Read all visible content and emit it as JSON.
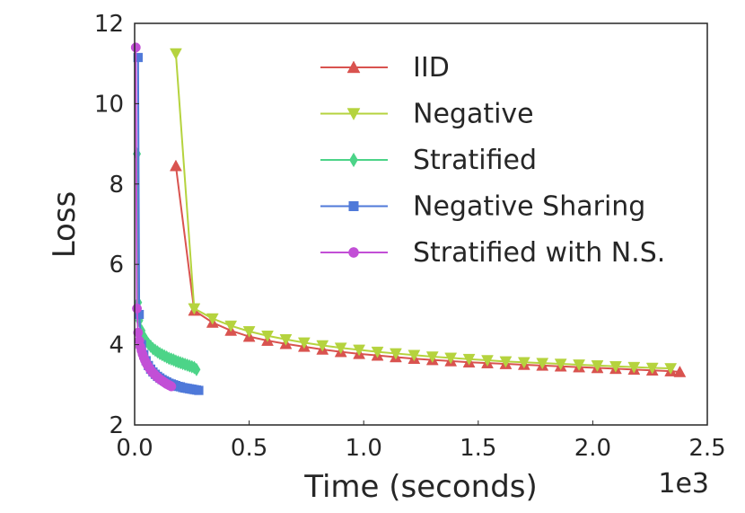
{
  "chart_data": {
    "type": "line",
    "title": "",
    "xlabel": "Time (seconds)",
    "ylabel": "Loss",
    "x_offset_label": "1e3",
    "xlim": [
      0,
      2.5
    ],
    "ylim": [
      2,
      12
    ],
    "x_ticks": [
      0.0,
      0.5,
      1.0,
      1.5,
      2.0,
      2.5
    ],
    "x_tick_labels": [
      "0.0",
      "0.5",
      "1.0",
      "1.5",
      "2.0",
      "2.5"
    ],
    "y_ticks": [
      2,
      4,
      6,
      8,
      10,
      12
    ],
    "y_tick_labels": [
      "2",
      "4",
      "6",
      "8",
      "10",
      "12"
    ],
    "grid": false,
    "legend_position": "upper-right",
    "series": [
      {
        "name": "IID",
        "color": "#d9534f",
        "marker": "triangle-up",
        "x": [
          0.18,
          0.26,
          0.34,
          0.42,
          0.5,
          0.58,
          0.66,
          0.74,
          0.82,
          0.9,
          0.98,
          1.06,
          1.14,
          1.22,
          1.3,
          1.38,
          1.46,
          1.54,
          1.62,
          1.7,
          1.78,
          1.86,
          1.94,
          2.02,
          2.1,
          2.18,
          2.26,
          2.34,
          2.38
        ],
        "y": [
          8.45,
          4.85,
          4.55,
          4.35,
          4.2,
          4.1,
          4.02,
          3.95,
          3.88,
          3.82,
          3.77,
          3.73,
          3.69,
          3.65,
          3.62,
          3.59,
          3.56,
          3.54,
          3.52,
          3.5,
          3.48,
          3.46,
          3.44,
          3.42,
          3.4,
          3.38,
          3.36,
          3.34,
          3.32
        ]
      },
      {
        "name": "Negative",
        "color": "#b5d33e",
        "marker": "triangle-down",
        "x": [
          0.18,
          0.26,
          0.34,
          0.42,
          0.5,
          0.58,
          0.66,
          0.74,
          0.82,
          0.9,
          0.98,
          1.06,
          1.14,
          1.22,
          1.3,
          1.38,
          1.46,
          1.54,
          1.62,
          1.7,
          1.78,
          1.86,
          1.94,
          2.02,
          2.1,
          2.18,
          2.26,
          2.34
        ],
        "y": [
          11.25,
          4.9,
          4.65,
          4.47,
          4.33,
          4.22,
          4.13,
          4.05,
          3.98,
          3.92,
          3.87,
          3.82,
          3.78,
          3.74,
          3.7,
          3.67,
          3.64,
          3.61,
          3.58,
          3.56,
          3.54,
          3.52,
          3.5,
          3.48,
          3.46,
          3.44,
          3.42,
          3.41
        ]
      },
      {
        "name": "Stratified",
        "color": "#4cd488",
        "marker": "diamond",
        "x": [
          0.01,
          0.015,
          0.02,
          0.03,
          0.04,
          0.05,
          0.06,
          0.07,
          0.08,
          0.09,
          0.1,
          0.11,
          0.12,
          0.13,
          0.14,
          0.15,
          0.16,
          0.17,
          0.18,
          0.19,
          0.2,
          0.21,
          0.22,
          0.23,
          0.24,
          0.25,
          0.26,
          0.27
        ],
        "y": [
          8.75,
          5.05,
          4.6,
          4.35,
          4.2,
          4.1,
          4.02,
          3.96,
          3.9,
          3.86,
          3.82,
          3.78,
          3.75,
          3.72,
          3.69,
          3.66,
          3.64,
          3.62,
          3.59,
          3.57,
          3.55,
          3.53,
          3.51,
          3.49,
          3.47,
          3.45,
          3.43,
          3.38
        ]
      },
      {
        "name": "Negative Sharing",
        "color": "#4f79d9",
        "marker": "square",
        "x": [
          0.015,
          0.02,
          0.03,
          0.04,
          0.05,
          0.06,
          0.07,
          0.08,
          0.09,
          0.1,
          0.11,
          0.12,
          0.13,
          0.14,
          0.15,
          0.16,
          0.17,
          0.18,
          0.19,
          0.2,
          0.21,
          0.22,
          0.23,
          0.24,
          0.25,
          0.26,
          0.27,
          0.28
        ],
        "y": [
          11.15,
          4.75,
          4.0,
          3.75,
          3.6,
          3.48,
          3.39,
          3.32,
          3.26,
          3.21,
          3.17,
          3.13,
          3.1,
          3.07,
          3.04,
          3.02,
          3.0,
          2.98,
          2.96,
          2.95,
          2.93,
          2.92,
          2.91,
          2.9,
          2.89,
          2.88,
          2.87,
          2.86
        ]
      },
      {
        "name": "Stratified with N.S.",
        "color": "#c24fd6",
        "marker": "circle",
        "x": [
          0.005,
          0.01,
          0.015,
          0.02,
          0.025,
          0.03,
          0.035,
          0.04,
          0.045,
          0.05,
          0.055,
          0.06,
          0.065,
          0.07,
          0.075,
          0.08,
          0.085,
          0.09,
          0.095,
          0.1,
          0.105,
          0.11,
          0.115,
          0.12,
          0.125,
          0.13,
          0.135,
          0.14,
          0.145,
          0.15,
          0.155,
          0.16
        ],
        "y": [
          11.4,
          4.9,
          4.3,
          4.1,
          3.95,
          3.85,
          3.76,
          3.68,
          3.61,
          3.55,
          3.5,
          3.45,
          3.41,
          3.37,
          3.33,
          3.3,
          3.27,
          3.24,
          3.21,
          3.19,
          3.16,
          3.14,
          3.12,
          3.1,
          3.08,
          3.06,
          3.04,
          3.02,
          3.01,
          2.99,
          2.98,
          2.96
        ]
      }
    ]
  }
}
